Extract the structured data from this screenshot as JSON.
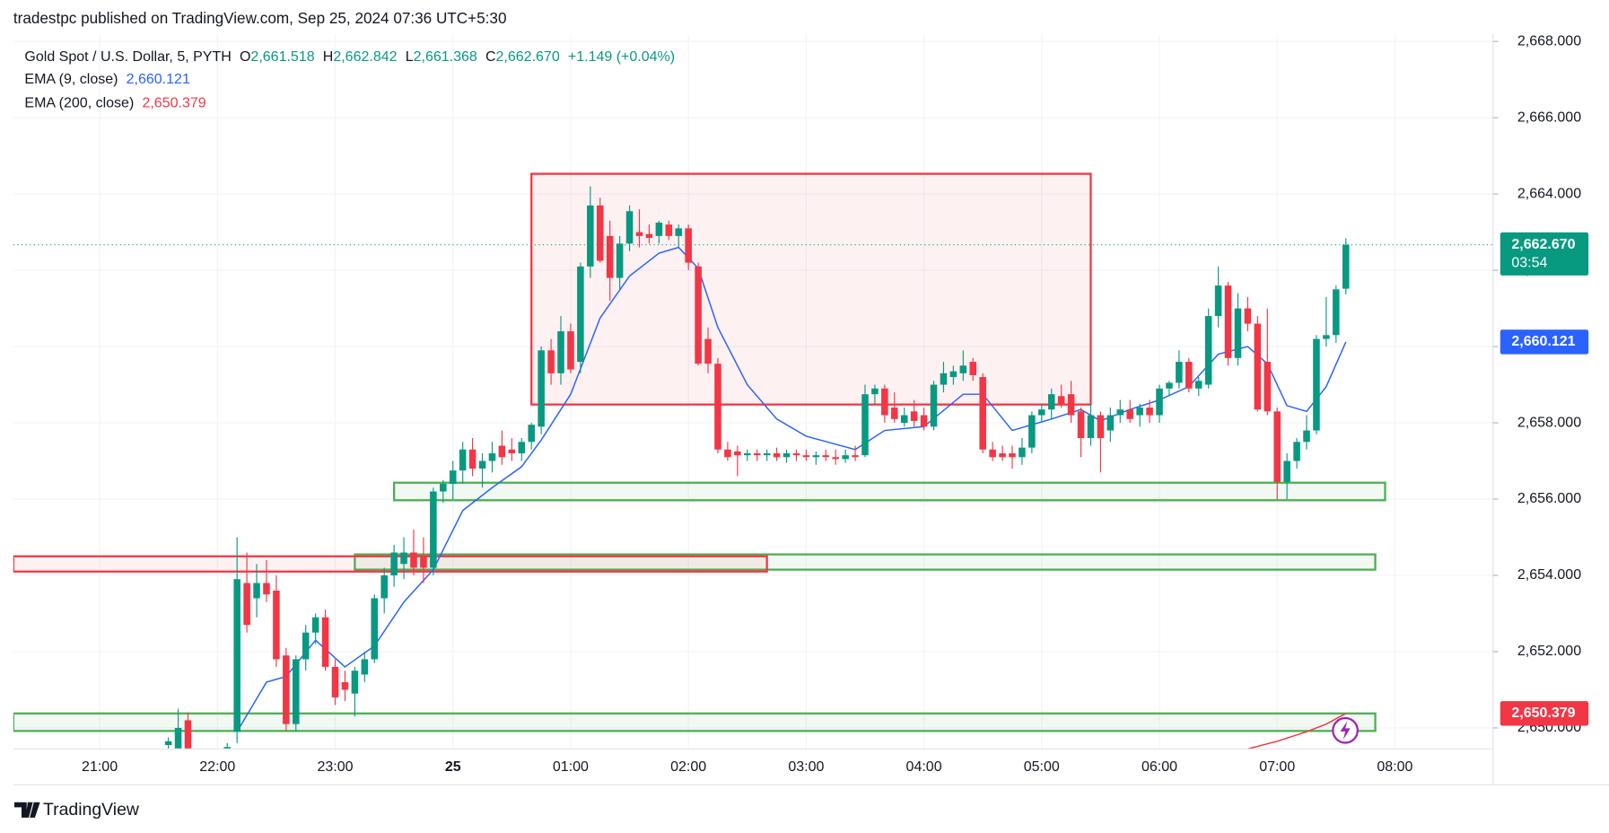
{
  "header": {
    "publisher": "tradestpc published on TradingView.com, Sep 25, 2024 07:36 UTC+5:30"
  },
  "footer": {
    "brand": "TradingView"
  },
  "chart_data": {
    "type": "candlestick",
    "title": "Gold Spot / U.S. Dollar, 5, PYTH",
    "ohlc_legend": [
      {
        "label": "O",
        "value": "2,661.518"
      },
      {
        "label": "H",
        "value": "2,662.842"
      },
      {
        "label": "L",
        "value": "2,661.368"
      },
      {
        "label": "C",
        "value": "2,662.670"
      }
    ],
    "change": "+1.149 (+0.04%)",
    "countdown": "03:54",
    "up_color": "#089981",
    "down_color": "#f23645",
    "x": [
      "21:35",
      "21:40",
      "21:45",
      "21:50",
      "21:55",
      "22:00",
      "22:05",
      "22:10",
      "22:15",
      "22:20",
      "22:25",
      "22:30",
      "22:35",
      "22:40",
      "22:45",
      "22:50",
      "22:55",
      "23:00",
      "23:05",
      "23:10",
      "23:15",
      "23:20",
      "23:25",
      "23:30",
      "23:35",
      "23:40",
      "23:45",
      "23:50",
      "23:55",
      "00:00",
      "00:05",
      "00:10",
      "00:15",
      "00:20",
      "00:25",
      "00:30",
      "00:35",
      "00:40",
      "00:45",
      "00:50",
      "00:55",
      "01:00",
      "01:05",
      "01:10",
      "01:15",
      "01:20",
      "01:25",
      "01:30",
      "01:35",
      "01:40",
      "01:45",
      "01:50",
      "01:55",
      "02:00",
      "02:05",
      "02:10",
      "02:15",
      "02:20",
      "02:25",
      "02:30",
      "02:35",
      "02:40",
      "02:45",
      "02:50",
      "02:55",
      "03:00",
      "03:05",
      "03:10",
      "03:15",
      "03:20",
      "03:25",
      "03:30",
      "03:35",
      "03:40",
      "03:45",
      "03:50",
      "03:55",
      "04:00",
      "04:05",
      "04:10",
      "04:15",
      "04:20",
      "04:25",
      "04:30",
      "04:35",
      "04:40",
      "04:45",
      "04:50",
      "04:55",
      "05:00",
      "05:05",
      "05:10",
      "05:15",
      "05:20",
      "05:25",
      "05:30",
      "05:35",
      "05:40",
      "05:45",
      "05:50",
      "05:55",
      "06:00",
      "06:05",
      "06:10",
      "06:15",
      "06:20",
      "06:25",
      "06:30",
      "06:35",
      "06:40",
      "06:45",
      "06:50",
      "06:55",
      "07:00",
      "07:05",
      "07:10",
      "07:15",
      "07:20",
      "07:25",
      "07:30",
      "07:35"
    ],
    "open": [
      2649.55,
      2649.45,
      2650.2,
      2649.3,
      2649.0,
      2649.1,
      2649.3,
      2649.9,
      2653.8,
      2653.4,
      2653.8,
      2653.6,
      2651.9,
      2650.1,
      2651.8,
      2652.5,
      2652.9,
      2651.6,
      2651.2,
      2650.9,
      2651.4,
      2651.8,
      2653.4,
      2654.0,
      2654.3,
      2654.6,
      2654.5,
      2654.2,
      2656.2,
      2656.4,
      2656.75,
      2657.3,
      2656.8,
      2657.0,
      2657.4,
      2657.3,
      2657.2,
      2657.5,
      2657.9,
      2659.9,
      2659.3,
      2660.4,
      2659.6,
      2662.1,
      2663.7,
      2662.9,
      2661.8,
      2662.7,
      2663.0,
      2662.95,
      2662.9,
      2663.2,
      2662.9,
      2663.1,
      2662.1,
      2660.2,
      2659.55,
      2657.3,
      2657.25,
      2657.15,
      2657.2,
      2657.15,
      2657.2,
      2657.1,
      2657.2,
      2657.15,
      2657.1,
      2657.15,
      2657.1,
      2657.05,
      2657.15,
      2657.15,
      2658.75,
      2658.9,
      2658.4,
      2658.0,
      2658.3,
      2658.2,
      2657.9,
      2659.0,
      2659.2,
      2659.3,
      2659.6,
      2659.2,
      2657.3,
      2657.2,
      2657.2,
      2657.1,
      2657.35,
      2658.2,
      2658.35,
      2658.7,
      2658.75,
      2658.3,
      2657.6,
      2658.2,
      2657.8,
      2658.2,
      2658.35,
      2658.2,
      2658.4,
      2658.2,
      2658.9,
      2659.05,
      2659.6,
      2658.9,
      2659.0,
      2660.8,
      2661.6,
      2659.7,
      2661.0,
      2660.6,
      2659.6,
      2658.3,
      2656.45,
      2657.0,
      2657.5,
      2657.8,
      2660.2,
      2660.3,
      2661.518
    ],
    "high": [
      2649.75,
      2650.5,
      2650.4,
      2649.4,
      2649.3,
      2649.4,
      2649.6,
      2655.0,
      2654.6,
      2654.3,
      2654.4,
      2654.0,
      2652.1,
      2651.9,
      2652.7,
      2653.0,
      2653.1,
      2651.8,
      2651.5,
      2651.6,
      2652.0,
      2653.5,
      2654.2,
      2654.8,
      2655.0,
      2655.2,
      2655.0,
      2656.3,
      2656.5,
      2657.0,
      2657.5,
      2657.6,
      2657.2,
      2657.5,
      2657.8,
      2657.6,
      2657.6,
      2658.0,
      2660.0,
      2660.2,
      2660.8,
      2660.6,
      2662.2,
      2664.2,
      2663.9,
      2663.3,
      2662.9,
      2663.7,
      2663.6,
      2663.2,
      2663.3,
      2663.3,
      2663.2,
      2663.2,
      2662.2,
      2660.5,
      2659.7,
      2657.5,
      2657.4,
      2657.3,
      2657.3,
      2657.3,
      2657.35,
      2657.3,
      2657.3,
      2657.3,
      2657.25,
      2657.3,
      2657.3,
      2657.3,
      2657.4,
      2659.0,
      2659.0,
      2659.0,
      2658.8,
      2658.4,
      2658.6,
      2658.4,
      2659.1,
      2659.6,
      2659.5,
      2659.9,
      2659.7,
      2659.3,
      2657.5,
      2657.4,
      2657.4,
      2657.6,
      2658.3,
      2658.5,
      2658.9,
      2659.0,
      2659.1,
      2658.4,
      2658.5,
      2658.3,
      2658.4,
      2658.6,
      2658.6,
      2658.5,
      2658.6,
      2659.0,
      2659.1,
      2659.9,
      2659.7,
      2659.2,
      2661.0,
      2662.1,
      2661.7,
      2661.4,
      2661.3,
      2660.8,
      2661.0,
      2658.4,
      2657.2,
      2657.6,
      2658.2,
      2660.3,
      2661.3,
      2661.6,
      2662.842
    ],
    "low": [
      2649.35,
      2649.3,
      2649.3,
      2648.8,
      2648.7,
      2648.9,
      2649.0,
      2649.6,
      2652.5,
      2652.9,
      2653.3,
      2651.6,
      2649.9,
      2649.9,
      2651.5,
      2652.2,
      2651.5,
      2650.6,
      2650.7,
      2650.3,
      2651.2,
      2651.7,
      2653.0,
      2653.7,
      2653.9,
      2654.0,
      2653.8,
      2654.0,
      2655.9,
      2656.0,
      2656.4,
      2656.6,
      2656.3,
      2656.7,
      2656.9,
      2657.0,
      2657.0,
      2657.3,
      2657.7,
      2659.0,
      2659.0,
      2659.3,
      2659.3,
      2661.8,
      2662.2,
      2661.2,
      2661.5,
      2662.5,
      2662.6,
      2662.7,
      2662.7,
      2662.8,
      2662.6,
      2662.0,
      2659.5,
      2659.3,
      2657.2,
      2657.0,
      2656.6,
      2657.0,
      2657.0,
      2657.0,
      2657.0,
      2656.95,
      2657.0,
      2657.0,
      2656.9,
      2657.0,
      2656.9,
      2656.95,
      2657.0,
      2657.1,
      2658.5,
      2658.0,
      2658.0,
      2657.9,
      2657.9,
      2657.8,
      2657.8,
      2658.8,
      2659.0,
      2659.1,
      2659.1,
      2657.2,
      2657.0,
      2657.0,
      2656.8,
      2656.9,
      2657.2,
      2658.0,
      2658.1,
      2658.4,
      2658.0,
      2657.1,
      2657.4,
      2656.7,
      2657.5,
      2658.0,
      2658.0,
      2657.9,
      2658.0,
      2658.0,
      2658.7,
      2658.9,
      2658.8,
      2658.7,
      2658.9,
      2660.5,
      2659.5,
      2659.5,
      2660.4,
      2658.3,
      2658.2,
      2656.0,
      2656.0,
      2656.8,
      2657.3,
      2657.7,
      2660.0,
      2660.1,
      2661.368
    ],
    "close": [
      2649.65,
      2650.0,
      2649.4,
      2649.0,
      2649.1,
      2649.3,
      2649.5,
      2653.9,
      2652.7,
      2653.8,
      2653.5,
      2651.8,
      2650.1,
      2651.8,
      2652.5,
      2652.9,
      2651.6,
      2650.8,
      2651.0,
      2651.5,
      2651.8,
      2653.4,
      2654.0,
      2654.6,
      2654.6,
      2654.2,
      2654.2,
      2656.2,
      2656.4,
      2656.75,
      2657.3,
      2656.8,
      2657.0,
      2657.2,
      2657.1,
      2657.2,
      2657.5,
      2657.95,
      2659.9,
      2659.3,
      2660.4,
      2659.4,
      2662.1,
      2663.7,
      2662.25,
      2661.8,
      2662.7,
      2663.55,
      2662.9,
      2662.85,
      2663.25,
      2662.9,
      2663.1,
      2662.2,
      2659.55,
      2659.55,
      2657.3,
      2657.1,
      2657.15,
      2657.2,
      2657.15,
      2657.2,
      2657.1,
      2657.2,
      2657.15,
      2657.1,
      2657.15,
      2657.1,
      2657.05,
      2657.15,
      2657.1,
      2658.75,
      2658.9,
      2658.2,
      2658.1,
      2658.2,
      2658.05,
      2657.9,
      2659.0,
      2659.3,
      2659.35,
      2659.5,
      2659.25,
      2657.3,
      2657.1,
      2657.1,
      2657.1,
      2657.35,
      2658.2,
      2658.35,
      2658.75,
      2658.5,
      2658.2,
      2657.6,
      2658.2,
      2657.6,
      2658.2,
      2658.35,
      2658.1,
      2658.4,
      2658.2,
      2658.9,
      2659.05,
      2659.6,
      2658.9,
      2659.1,
      2660.8,
      2661.6,
      2659.7,
      2661.0,
      2660.6,
      2658.35,
      2658.3,
      2656.45,
      2657.0,
      2657.5,
      2657.8,
      2660.2,
      2660.3,
      2661.5,
      2662.67
    ],
    "indicators": [
      {
        "name": "EMA (9, close)",
        "value_label": "2,660.121",
        "color": "#2962ff",
        "x": [
          "22:10",
          "22:25",
          "22:35",
          "22:50",
          "23:05",
          "23:20",
          "23:35",
          "23:50",
          "00:05",
          "00:20",
          "00:35",
          "00:45",
          "01:00",
          "01:15",
          "01:30",
          "01:45",
          "01:55",
          "02:05",
          "02:15",
          "02:30",
          "02:45",
          "03:00",
          "03:25",
          "03:40",
          "04:00",
          "04:20",
          "04:30",
          "04:45",
          "05:05",
          "05:20",
          "05:30",
          "05:45",
          "06:00",
          "06:15",
          "06:30",
          "06:45",
          "06:55",
          "07:05",
          "07:15",
          "07:25",
          "07:35"
        ],
        "values": [
          2649.9,
          2651.2,
          2651.35,
          2652.3,
          2651.6,
          2652.15,
          2653.3,
          2654.15,
          2655.7,
          2656.3,
          2656.85,
          2657.55,
          2658.75,
          2660.75,
          2661.85,
          2662.45,
          2662.6,
          2662.05,
          2660.5,
          2659.0,
          2658.1,
          2657.65,
          2657.3,
          2657.8,
          2657.9,
          2658.75,
          2658.75,
          2657.8,
          2658.1,
          2658.35,
          2658.05,
          2658.35,
          2658.6,
          2658.95,
          2659.8,
          2660.0,
          2659.55,
          2658.45,
          2658.3,
          2658.95,
          2660.121
        ]
      },
      {
        "name": "EMA (200, close)",
        "value_label": "2,650.379",
        "color": "#f23645",
        "x": [
          "06:45",
          "07:00",
          "07:15",
          "07:25",
          "07:35"
        ],
        "values": [
          2649.45,
          2649.65,
          2649.9,
          2650.1,
          2650.379
        ]
      }
    ],
    "zones": [
      {
        "color": "#f23645",
        "x": [
          "00:40",
          "05:25"
        ],
        "y": [
          2664.53,
          2658.48
        ]
      },
      {
        "color": "#4caf50",
        "x": [
          "23:30",
          "07:55"
        ],
        "y": [
          2656.43,
          2655.97
        ]
      },
      {
        "color": "#4caf50",
        "x": [
          "23:10",
          "07:50"
        ],
        "y": [
          2654.55,
          2654.15
        ]
      },
      {
        "color": "#f23645",
        "x": [
          "20:16",
          "02:40"
        ],
        "y": [
          2654.5,
          2654.1
        ]
      },
      {
        "color": "#4caf50",
        "x": [
          "20:16",
          "07:50"
        ],
        "y": [
          2650.38,
          2649.92
        ]
      }
    ],
    "xlim": [
      "20:16",
      "08:50"
    ],
    "xticks": [
      "21:00",
      "22:00",
      "23:00",
      {
        "value": "00:00",
        "label": "25"
      },
      "01:00",
      "02:00",
      "03:00",
      "04:00",
      "05:00",
      "06:00",
      "07:00",
      "08:00"
    ],
    "ylim": [
      2649.45,
      2668.2
    ],
    "yticks": [
      {
        "value": 2650,
        "label": "2,650.000"
      },
      {
        "value": 2652,
        "label": "2,652.000"
      },
      {
        "value": 2654,
        "label": "2,654.000"
      },
      {
        "value": 2656,
        "label": "2,656.000"
      },
      {
        "value": 2658,
        "label": "2,658.000"
      },
      {
        "value": 2660,
        "label": "2,660.000"
      },
      {
        "value": 2662,
        "label": "2,662.000"
      },
      {
        "value": 2664,
        "label": "2,664.000"
      },
      {
        "value": 2666,
        "label": "2,666.000"
      },
      {
        "value": 2668,
        "label": "2,668.000"
      }
    ],
    "grid": true
  }
}
